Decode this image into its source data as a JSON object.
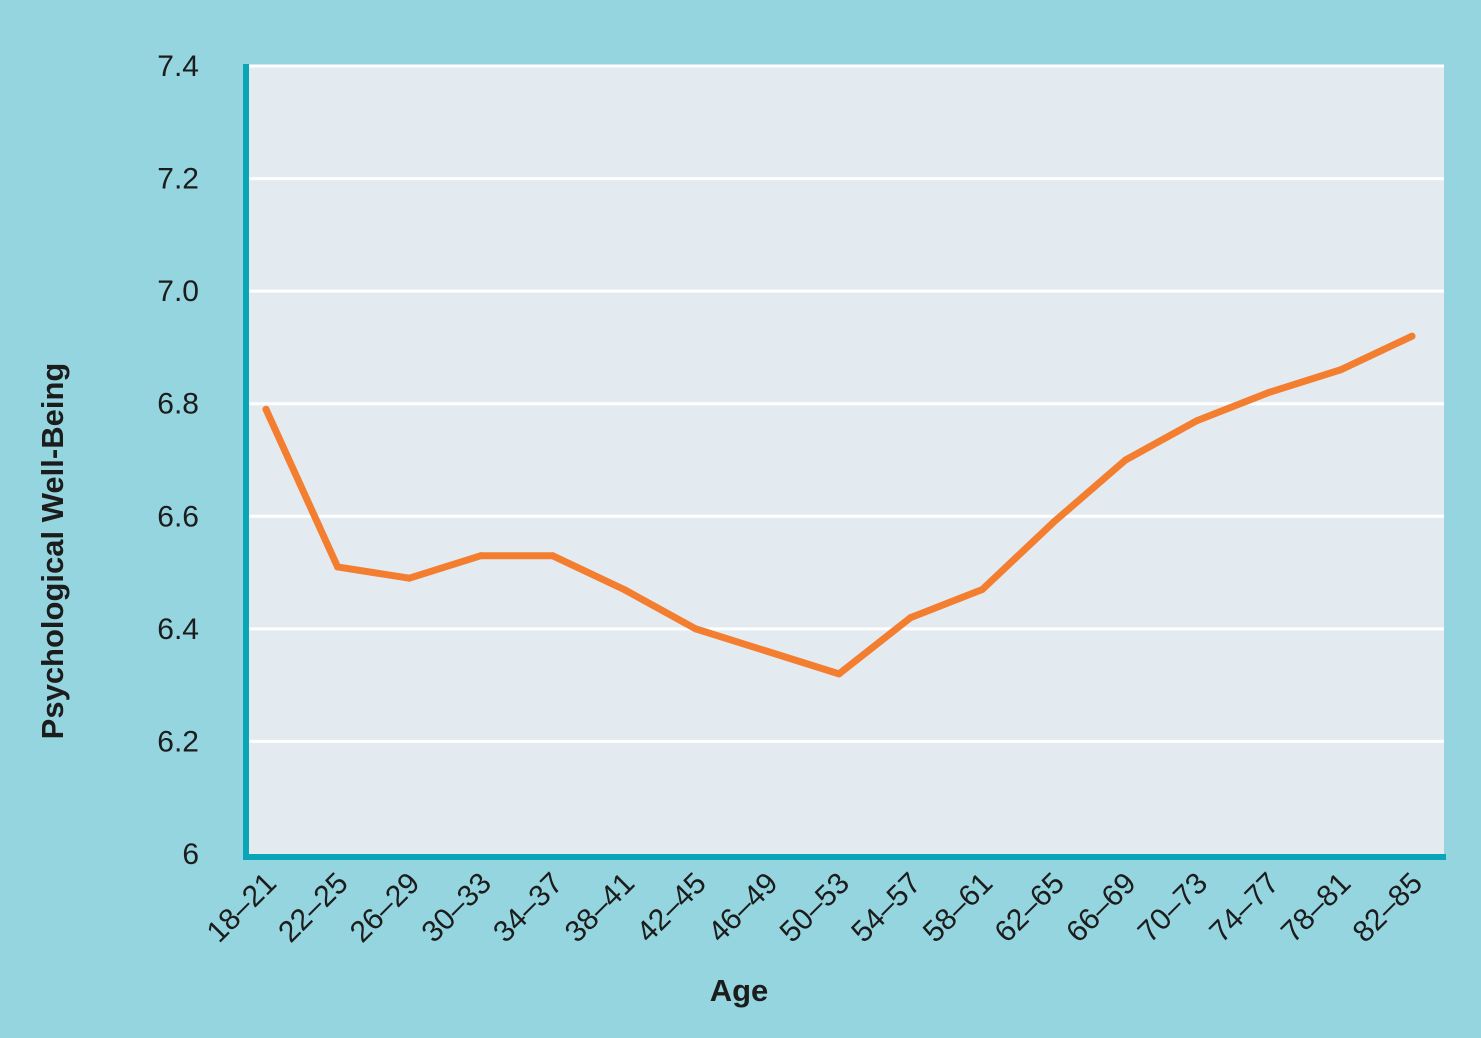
{
  "chart_data": {
    "type": "line",
    "title": "",
    "xlabel": "Age",
    "ylabel": "Psychological Well-Being",
    "categories": [
      "18–21",
      "22–25",
      "26–29",
      "30–33",
      "34–37",
      "38–41",
      "42–45",
      "46–49",
      "50–53",
      "54–57",
      "58–61",
      "62–65",
      "66–69",
      "70–73",
      "74–77",
      "78–81",
      "82–85"
    ],
    "series": [
      {
        "values": [
          6.79,
          6.51,
          6.49,
          6.53,
          6.53,
          6.47,
          6.4,
          6.36,
          6.32,
          6.42,
          6.47,
          6.59,
          6.7,
          6.77,
          6.82,
          6.86,
          6.92
        ]
      }
    ],
    "yticks": [
      "6",
      "6.2",
      "6.4",
      "6.6",
      "6.8",
      "7.0",
      "7.2",
      "7.4"
    ],
    "ylim": [
      6.0,
      7.4
    ],
    "grid": true,
    "colors": {
      "background": "#94d5df",
      "plot_area": "#e3ebf1",
      "gridline": "#ffffff",
      "axis": "#0aa6b8",
      "line": "#f47e30"
    }
  }
}
